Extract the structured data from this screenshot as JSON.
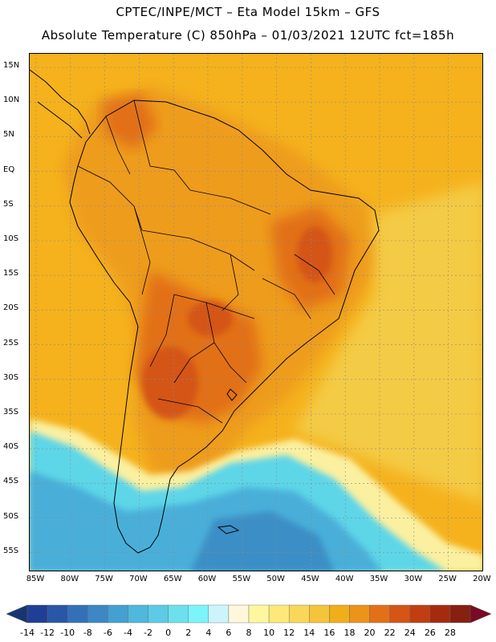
{
  "header": {
    "line1": "CPTEC/INPE/MCT –  Eta Model 15km – GFS",
    "line2": "Absolute Temperature (C) 850hPa – 01/03/2021 12UTC fct=185h"
  },
  "map": {
    "lat_labels": [
      "15N",
      "10N",
      "5N",
      "EQ",
      "5S",
      "10S",
      "15S",
      "20S",
      "25S",
      "30S",
      "35S",
      "40S",
      "45S",
      "50S",
      "55S"
    ],
    "lon_labels": [
      "85W",
      "80W",
      "75W",
      "70W",
      "65W",
      "60W",
      "55W",
      "50W",
      "45W",
      "40W",
      "35W",
      "30W",
      "25W",
      "20W"
    ],
    "colors": {
      "warm_base": "#F5B21D",
      "land_warm": "#EE9C1A",
      "hot": "#E27018",
      "very_hot": "#D45515",
      "mild": "#F4CB44",
      "cool_yellow": "#FBF0A0",
      "cyan": "#5DD6E8",
      "blue": "#4AAFD9",
      "deep_blue": "#3B8FC6",
      "border": "#000000"
    }
  },
  "colorbar": {
    "labels": [
      "-14",
      "-12",
      "-10",
      "-8",
      "-6",
      "-4",
      "-2",
      "0",
      "2",
      "4",
      "6",
      "8",
      "10",
      "12",
      "14",
      "16",
      "18",
      "20",
      "22",
      "24",
      "26",
      "28"
    ],
    "colors": [
      "#1F3F94",
      "#2A56A8",
      "#3470B8",
      "#3C87C4",
      "#44A0D0",
      "#4FB8DC",
      "#5DCBE6",
      "#6DE0EE",
      "#7BF5FA",
      "#CBF5FB",
      "#FFF7DA",
      "#FFF7A0",
      "#FCE97A",
      "#F9D757",
      "#F4C43B",
      "#F0AE1B",
      "#EC931A",
      "#E27018",
      "#D45515",
      "#C13E12",
      "#A52B0F",
      "#862010"
    ],
    "low_cap": "#173570",
    "high_cap": "#7A0A25"
  }
}
